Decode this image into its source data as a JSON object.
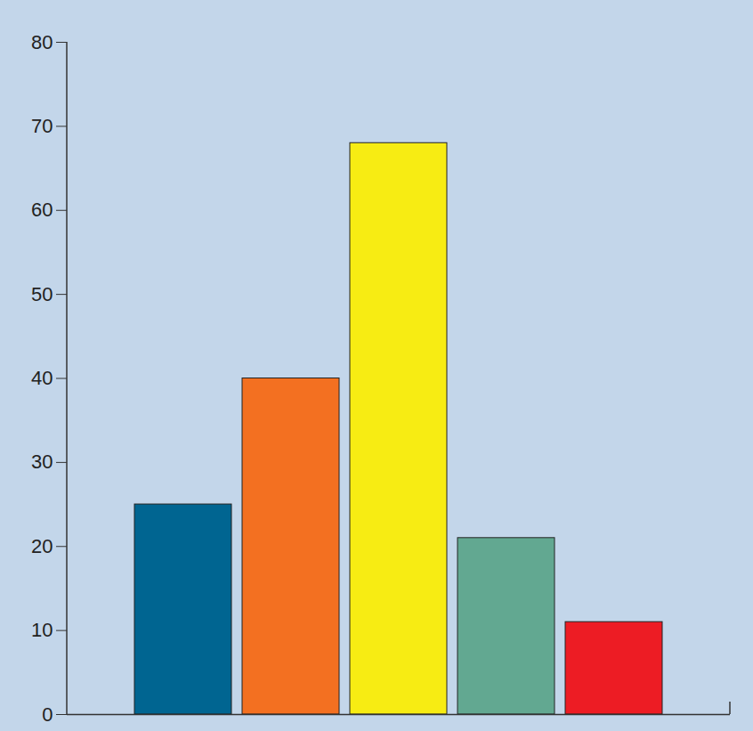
{
  "chart_data": {
    "type": "bar",
    "categories": [
      null,
      null,
      null,
      null,
      null
    ],
    "values": [
      25,
      40,
      68,
      21,
      11
    ],
    "colors": [
      "#006591",
      "#f37021",
      "#f7ec13",
      "#62a891",
      "#ed1c24"
    ],
    "ylim": [
      0,
      80
    ],
    "yticks": [
      0,
      10,
      20,
      30,
      40,
      50,
      60,
      70,
      80
    ],
    "grid": false,
    "tick_labels": "y"
  }
}
